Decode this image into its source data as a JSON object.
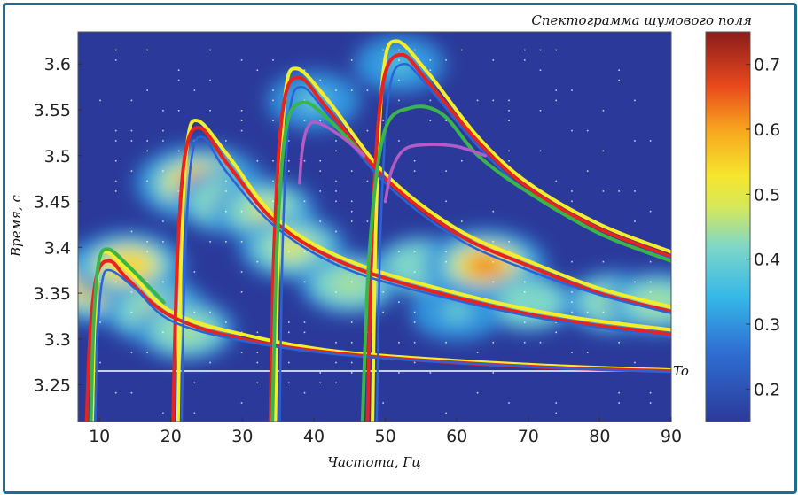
{
  "chart_data": {
    "type": "heatmap",
    "title": "Спектограмма шумового поля",
    "xlabel": "Частота, Гц",
    "ylabel": "Время, с",
    "xlim": [
      7,
      90
    ],
    "ylim": [
      3.21,
      3.635
    ],
    "x_ticks": [
      "10",
      "20",
      "30",
      "40",
      "50",
      "60",
      "70",
      "80",
      "90"
    ],
    "x_tick_values": [
      10,
      20,
      30,
      40,
      50,
      60,
      70,
      80,
      90
    ],
    "y_ticks": [
      "3.25",
      "3.3",
      "3.35",
      "3.4",
      "3.45",
      "3.5",
      "3.55",
      "3.6"
    ],
    "y_tick_values": [
      3.25,
      3.3,
      3.35,
      3.4,
      3.45,
      3.5,
      3.55,
      3.6
    ],
    "colorbar": {
      "range": [
        0.15,
        0.75
      ],
      "ticks": [
        "0.2",
        "0.3",
        "0.4",
        "0.5",
        "0.6",
        "0.7"
      ],
      "tick_values": [
        0.2,
        0.3,
        0.4,
        0.5,
        0.6,
        0.7
      ]
    },
    "reference_line": {
      "label": "To",
      "y": 3.265,
      "color": "#ffffff"
    },
    "hotspots": [
      {
        "x": 10,
        "y": 3.36,
        "value": 0.72
      },
      {
        "x": 14,
        "y": 3.38,
        "value": 0.55
      },
      {
        "x": 18,
        "y": 3.33,
        "value": 0.5
      },
      {
        "x": 24,
        "y": 3.47,
        "value": 0.66
      },
      {
        "x": 28,
        "y": 3.45,
        "value": 0.5
      },
      {
        "x": 33,
        "y": 3.44,
        "value": 0.48
      },
      {
        "x": 37,
        "y": 3.4,
        "value": 0.5
      },
      {
        "x": 45,
        "y": 3.36,
        "value": 0.45
      },
      {
        "x": 55,
        "y": 3.38,
        "value": 0.42
      },
      {
        "x": 64,
        "y": 3.38,
        "value": 0.62
      },
      {
        "x": 70,
        "y": 3.34,
        "value": 0.42
      },
      {
        "x": 82,
        "y": 3.34,
        "value": 0.45
      },
      {
        "x": 88,
        "y": 3.34,
        "value": 0.45
      },
      {
        "x": 40,
        "y": 3.56,
        "value": 0.4
      },
      {
        "x": 52,
        "y": 3.6,
        "value": 0.38
      },
      {
        "x": 22,
        "y": 3.31,
        "value": 0.45
      },
      {
        "x": 60,
        "y": 3.33,
        "value": 0.4
      }
    ],
    "series": [
      {
        "color": "#f4ee2a",
        "width": 4,
        "curves": [
          {
            "x0": 9.0,
            "y0": 3.21,
            "xp": 11.0,
            "yp": 3.395,
            "tail": [
              [
                14,
                3.375
              ],
              [
                20,
                3.33
              ],
              [
                30,
                3.305
              ],
              [
                45,
                3.285
              ],
              [
                70,
                3.272
              ],
              [
                90,
                3.266
              ]
            ]
          },
          {
            "x0": 21.0,
            "y0": 3.21,
            "xp": 23.8,
            "yp": 3.538,
            "tail": [
              [
                28,
                3.5
              ],
              [
                35,
                3.43
              ],
              [
                45,
                3.385
              ],
              [
                60,
                3.35
              ],
              [
                75,
                3.325
              ],
              [
                90,
                3.31
              ]
            ]
          },
          {
            "x0": 34.6,
            "y0": 3.21,
            "xp": 37.6,
            "yp": 3.595,
            "tail": [
              [
                42,
                3.56
              ],
              [
                50,
                3.48
              ],
              [
                60,
                3.42
              ],
              [
                70,
                3.385
              ],
              [
                80,
                3.355
              ],
              [
                90,
                3.335
              ]
            ]
          },
          {
            "x0": 48.2,
            "y0": 3.21,
            "xp": 51.6,
            "yp": 3.625,
            "tail": [
              [
                56,
                3.59
              ],
              [
                63,
                3.52
              ],
              [
                70,
                3.47
              ],
              [
                80,
                3.425
              ],
              [
                90,
                3.395
              ]
            ]
          }
        ]
      },
      {
        "color": "#e8231f",
        "width": 4,
        "curves": [
          {
            "x0": 8.2,
            "y0": 3.21,
            "xp": 11.5,
            "yp": 3.385,
            "tail": [
              [
                14,
                3.365
              ],
              [
                20,
                3.325
              ],
              [
                30,
                3.3
              ],
              [
                45,
                3.283
              ],
              [
                70,
                3.27
              ],
              [
                90,
                3.265
              ]
            ]
          },
          {
            "x0": 20.3,
            "y0": 3.21,
            "xp": 24.2,
            "yp": 3.53,
            "tail": [
              [
                28,
                3.49
              ],
              [
                35,
                3.425
              ],
              [
                45,
                3.38
              ],
              [
                60,
                3.345
              ],
              [
                75,
                3.32
              ],
              [
                90,
                3.305
              ]
            ]
          },
          {
            "x0": 33.9,
            "y0": 3.21,
            "xp": 38.0,
            "yp": 3.585,
            "tail": [
              [
                42,
                3.55
              ],
              [
                50,
                3.475
              ],
              [
                60,
                3.415
              ],
              [
                70,
                3.38
              ],
              [
                80,
                3.35
              ],
              [
                90,
                3.33
              ]
            ]
          },
          {
            "x0": 47.5,
            "y0": 3.21,
            "xp": 52.3,
            "yp": 3.61,
            "tail": [
              [
                56,
                3.58
              ],
              [
                63,
                3.515
              ],
              [
                70,
                3.465
              ],
              [
                80,
                3.42
              ],
              [
                90,
                3.39
              ]
            ]
          }
        ]
      },
      {
        "color": "#2b63d6",
        "width": 2.5,
        "curves": [
          {
            "x0": 9.4,
            "y0": 3.21,
            "xp": 11.5,
            "yp": 3.375,
            "tail": [
              [
                15,
                3.355
              ],
              [
                20,
                3.32
              ],
              [
                30,
                3.298
              ],
              [
                45,
                3.282
              ],
              [
                70,
                3.27
              ],
              [
                90,
                3.264
              ]
            ]
          },
          {
            "x0": 21.5,
            "y0": 3.21,
            "xp": 24.5,
            "yp": 3.52,
            "tail": [
              [
                28,
                3.48
              ],
              [
                35,
                3.42
              ],
              [
                45,
                3.375
              ],
              [
                60,
                3.342
              ],
              [
                75,
                3.318
              ],
              [
                90,
                3.302
              ]
            ]
          },
          {
            "x0": 35.2,
            "y0": 3.21,
            "xp": 38.3,
            "yp": 3.575,
            "tail": [
              [
                42,
                3.545
              ],
              [
                50,
                3.47
              ],
              [
                60,
                3.41
              ],
              [
                70,
                3.375
              ],
              [
                80,
                3.348
              ],
              [
                90,
                3.328
              ]
            ]
          },
          {
            "x0": 48.8,
            "y0": 3.21,
            "xp": 52.6,
            "yp": 3.6,
            "tail": [
              [
                56,
                3.575
              ],
              [
                63,
                3.51
              ],
              [
                70,
                3.46
              ],
              [
                80,
                3.415
              ],
              [
                90,
                3.387
              ]
            ]
          }
        ]
      },
      {
        "color": "#39b54a",
        "width": 4,
        "curves": [
          {
            "x0": 8.8,
            "y0": 3.21,
            "xp": 11.2,
            "yp": 3.398,
            "tail": [
              [
                14,
                3.38
              ],
              [
                19,
                3.34
              ]
            ]
          },
          {
            "x0": 34.2,
            "y0": 3.21,
            "xp": 38.5,
            "yp": 3.558,
            "tail": [
              [
                42,
                3.54
              ],
              [
                47,
                3.5
              ]
            ]
          },
          {
            "x0": 46.8,
            "y0": 3.21,
            "xp": 53.5,
            "yp": 3.552,
            "tail": [
              [
                58,
                3.545
              ],
              [
                63,
                3.5
              ],
              [
                70,
                3.46
              ],
              [
                80,
                3.415
              ],
              [
                90,
                3.385
              ]
            ]
          }
        ]
      },
      {
        "color": "#b45bc6",
        "width": 3.5,
        "curves": [
          {
            "x0": 38.0,
            "y0": 3.47,
            "xp": 40.5,
            "yp": 3.536,
            "tail": [
              [
                44,
                3.52
              ],
              [
                47,
                3.5
              ]
            ]
          },
          {
            "x0": 50.0,
            "y0": 3.45,
            "xp": 56.0,
            "yp": 3.512,
            "tail": [
              [
                60,
                3.51
              ],
              [
                64,
                3.5
              ]
            ]
          }
        ]
      }
    ]
  }
}
